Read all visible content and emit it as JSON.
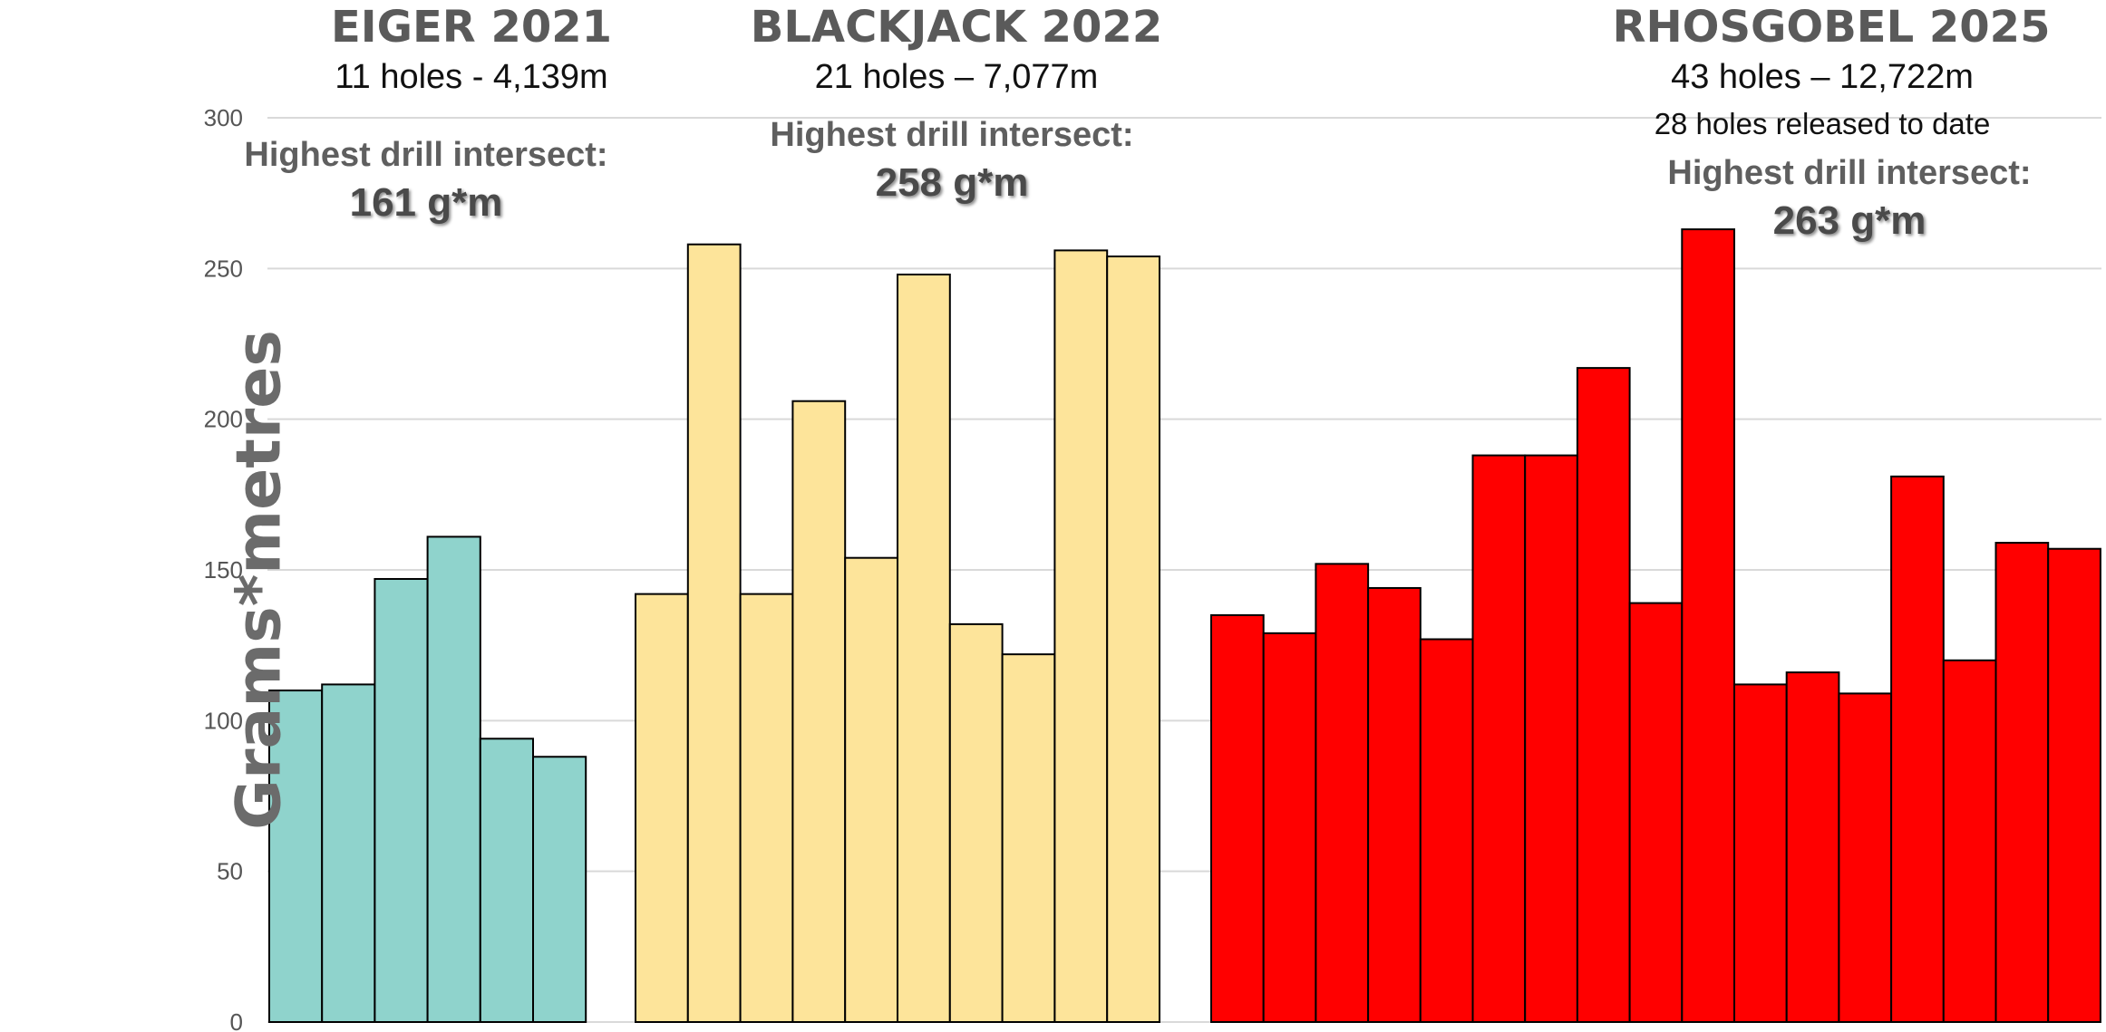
{
  "chart_data": {
    "type": "bar",
    "ylabel": "Grams*metres",
    "ylim": [
      0,
      300
    ],
    "yticks": [
      0,
      50,
      100,
      150,
      200,
      250,
      300
    ],
    "grid": true,
    "groups": [
      {
        "title": "EIGER 2021",
        "subtitle": "11 holes - 4,139m",
        "note": "",
        "highlight_label": "Highest drill intersect:",
        "highlight_value": "161 g*m",
        "color": "#8fd3cc",
        "values": [
          110,
          112,
          147,
          161,
          94,
          88
        ]
      },
      {
        "title": "BLACKJACK 2022",
        "subtitle": "21 holes – 7,077m",
        "note": "",
        "highlight_label": "Highest drill intersect:",
        "highlight_value": "258 g*m",
        "color": "#fde49a",
        "values": [
          142,
          258,
          142,
          206,
          154,
          248,
          132,
          122,
          256,
          254
        ]
      },
      {
        "title": "RHOSGOBEL 2025",
        "subtitle": "43 holes – 12,722m",
        "note": "28 holes released to date",
        "highlight_label": "Highest drill intersect:",
        "highlight_value": "263 g*m",
        "color": "#ff0000",
        "values": [
          135,
          129,
          152,
          144,
          127,
          188,
          188,
          217,
          139,
          263,
          112,
          116,
          109,
          181,
          120,
          159,
          157
        ]
      }
    ]
  }
}
